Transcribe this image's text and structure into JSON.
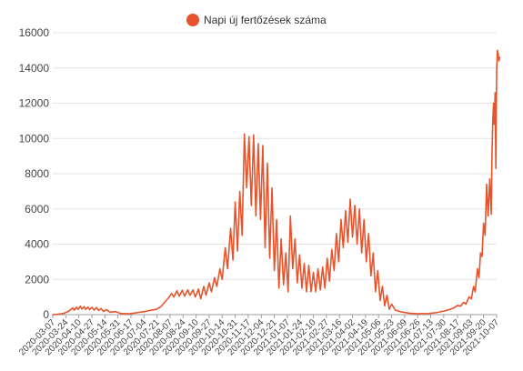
{
  "chart_data": {
    "type": "line",
    "legend": {
      "label": "Napi új fertőzések száma",
      "position": "top-center"
    },
    "series_color": "#e8532b",
    "grid": true,
    "ylim": [
      0,
      16000
    ],
    "y_ticks": [
      0,
      2000,
      4000,
      6000,
      8000,
      10000,
      12000,
      14000,
      16000
    ],
    "x_range": [
      "2020-03-07",
      "2021-10-07"
    ],
    "x_ticks": [
      "2020-03-07",
      "2020-03-24",
      "2020-04-10",
      "2020-04-27",
      "2020-05-14",
      "2020-05-31",
      "2020-06-17",
      "2020-07-04",
      "2020-07-21",
      "2020-08-07",
      "2020-08-24",
      "2020-09-10",
      "2020-09-27",
      "2020-10-14",
      "2020-10-31",
      "2020-11-17",
      "2020-12-04",
      "2020-12-21",
      "2021-01-07",
      "2021-01-24",
      "2021-02-10",
      "2021-02-27",
      "2021-03-16",
      "2021-04-02",
      "2021-04-19",
      "2021-05-06",
      "2021-05-23",
      "2021-06-09",
      "2021-06-26",
      "2021-07-13",
      "2021-07-30",
      "2021-08-17",
      "2021-09-03",
      "2021-09-20",
      "2021-10-07"
    ],
    "series": [
      {
        "name": "Napi új fertőzések száma",
        "points": [
          [
            "2020-03-07",
            0
          ],
          [
            "2020-03-15",
            20
          ],
          [
            "2020-03-22",
            80
          ],
          [
            "2020-03-28",
            200
          ],
          [
            "2020-04-02",
            380
          ],
          [
            "2020-04-04",
            250
          ],
          [
            "2020-04-07",
            420
          ],
          [
            "2020-04-09",
            300
          ],
          [
            "2020-04-12",
            480
          ],
          [
            "2020-04-14",
            320
          ],
          [
            "2020-04-17",
            450
          ],
          [
            "2020-04-19",
            300
          ],
          [
            "2020-04-22",
            430
          ],
          [
            "2020-04-24",
            280
          ],
          [
            "2020-04-27",
            420
          ],
          [
            "2020-04-30",
            260
          ],
          [
            "2020-05-03",
            400
          ],
          [
            "2020-05-06",
            230
          ],
          [
            "2020-05-09",
            350
          ],
          [
            "2020-05-12",
            180
          ],
          [
            "2020-05-16",
            280
          ],
          [
            "2020-05-21",
            130
          ],
          [
            "2020-05-28",
            170
          ],
          [
            "2020-06-04",
            60
          ],
          [
            "2020-06-15",
            50
          ],
          [
            "2020-06-25",
            110
          ],
          [
            "2020-07-04",
            170
          ],
          [
            "2020-07-12",
            240
          ],
          [
            "2020-07-20",
            300
          ],
          [
            "2020-07-26",
            450
          ],
          [
            "2020-07-30",
            650
          ],
          [
            "2020-08-03",
            850
          ],
          [
            "2020-08-06",
            1000
          ],
          [
            "2020-08-09",
            1200
          ],
          [
            "2020-08-12",
            1000
          ],
          [
            "2020-08-16",
            1350
          ],
          [
            "2020-08-19",
            1050
          ],
          [
            "2020-08-23",
            1380
          ],
          [
            "2020-08-26",
            1050
          ],
          [
            "2020-08-30",
            1400
          ],
          [
            "2020-09-02",
            1100
          ],
          [
            "2020-09-06",
            1400
          ],
          [
            "2020-09-09",
            1000
          ],
          [
            "2020-09-13",
            1450
          ],
          [
            "2020-09-16",
            900
          ],
          [
            "2020-09-20",
            1600
          ],
          [
            "2020-09-23",
            1100
          ],
          [
            "2020-09-27",
            1800
          ],
          [
            "2020-09-30",
            1300
          ],
          [
            "2020-10-04",
            2100
          ],
          [
            "2020-10-07",
            1600
          ],
          [
            "2020-10-11",
            2600
          ],
          [
            "2020-10-14",
            2000
          ],
          [
            "2020-10-18",
            3800
          ],
          [
            "2020-10-21",
            2600
          ],
          [
            "2020-10-25",
            4900
          ],
          [
            "2020-10-28",
            3100
          ],
          [
            "2020-10-31",
            6400
          ],
          [
            "2020-11-03",
            3600
          ],
          [
            "2020-11-06",
            7000
          ],
          [
            "2020-11-09",
            4500
          ],
          [
            "2020-11-12",
            10250
          ],
          [
            "2020-11-15",
            7200
          ],
          [
            "2020-11-18",
            10100
          ],
          [
            "2020-11-21",
            6200
          ],
          [
            "2020-11-24",
            10200
          ],
          [
            "2020-11-27",
            5600
          ],
          [
            "2020-11-30",
            9700
          ],
          [
            "2020-12-03",
            5400
          ],
          [
            "2020-12-06",
            9600
          ],
          [
            "2020-12-09",
            3800
          ],
          [
            "2020-12-12",
            8600
          ],
          [
            "2020-12-15",
            3200
          ],
          [
            "2020-12-18",
            7200
          ],
          [
            "2020-12-21",
            2500
          ],
          [
            "2020-12-24",
            5400
          ],
          [
            "2020-12-27",
            1500
          ],
          [
            "2020-12-30",
            4300
          ],
          [
            "2021-01-02",
            1700
          ],
          [
            "2021-01-05",
            3500
          ],
          [
            "2021-01-08",
            1300
          ],
          [
            "2021-01-11",
            5600
          ],
          [
            "2021-01-14",
            2600
          ],
          [
            "2021-01-17",
            4300
          ],
          [
            "2021-01-20",
            1800
          ],
          [
            "2021-01-23",
            3400
          ],
          [
            "2021-01-26",
            1500
          ],
          [
            "2021-01-29",
            2900
          ],
          [
            "2021-02-01",
            1300
          ],
          [
            "2021-02-04",
            2800
          ],
          [
            "2021-02-07",
            1300
          ],
          [
            "2021-02-10",
            2400
          ],
          [
            "2021-02-13",
            1300
          ],
          [
            "2021-02-16",
            2600
          ],
          [
            "2021-02-19",
            1400
          ],
          [
            "2021-02-22",
            2700
          ],
          [
            "2021-02-25",
            1500
          ],
          [
            "2021-02-28",
            3200
          ],
          [
            "2021-03-03",
            1900
          ],
          [
            "2021-03-06",
            3700
          ],
          [
            "2021-03-09",
            2500
          ],
          [
            "2021-03-12",
            4600
          ],
          [
            "2021-03-15",
            3000
          ],
          [
            "2021-03-18",
            5400
          ],
          [
            "2021-03-21",
            3800
          ],
          [
            "2021-03-24",
            5900
          ],
          [
            "2021-03-27",
            4100
          ],
          [
            "2021-03-30",
            6550
          ],
          [
            "2021-04-02",
            4400
          ],
          [
            "2021-04-05",
            6200
          ],
          [
            "2021-04-08",
            4000
          ],
          [
            "2021-04-11",
            6000
          ],
          [
            "2021-04-14",
            3500
          ],
          [
            "2021-04-17",
            5400
          ],
          [
            "2021-04-20",
            3000
          ],
          [
            "2021-04-23",
            4600
          ],
          [
            "2021-04-26",
            2200
          ],
          [
            "2021-04-29",
            3500
          ],
          [
            "2021-05-02",
            1300
          ],
          [
            "2021-05-05",
            2500
          ],
          [
            "2021-05-08",
            800
          ],
          [
            "2021-05-11",
            1600
          ],
          [
            "2021-05-14",
            500
          ],
          [
            "2021-05-17",
            1100
          ],
          [
            "2021-05-20",
            300
          ],
          [
            "2021-05-23",
            600
          ],
          [
            "2021-05-28",
            250
          ],
          [
            "2021-06-05",
            150
          ],
          [
            "2021-06-15",
            80
          ],
          [
            "2021-06-26",
            50
          ],
          [
            "2021-07-10",
            60
          ],
          [
            "2021-07-20",
            110
          ],
          [
            "2021-07-30",
            200
          ],
          [
            "2021-08-06",
            280
          ],
          [
            "2021-08-12",
            380
          ],
          [
            "2021-08-17",
            520
          ],
          [
            "2021-08-21",
            480
          ],
          [
            "2021-08-25",
            700
          ],
          [
            "2021-08-28",
            600
          ],
          [
            "2021-09-01",
            1000
          ],
          [
            "2021-09-04",
            900
          ],
          [
            "2021-09-07",
            1600
          ],
          [
            "2021-09-09",
            1300
          ],
          [
            "2021-09-12",
            2600
          ],
          [
            "2021-09-14",
            2100
          ],
          [
            "2021-09-16",
            3500
          ],
          [
            "2021-09-18",
            3300
          ],
          [
            "2021-09-20",
            5200
          ],
          [
            "2021-09-22",
            4500
          ],
          [
            "2021-09-24",
            7400
          ],
          [
            "2021-09-26",
            5600
          ],
          [
            "2021-09-28",
            7700
          ],
          [
            "2021-09-30",
            5700
          ],
          [
            "2021-10-01",
            9200
          ],
          [
            "2021-10-02",
            11000
          ],
          [
            "2021-10-03",
            12000
          ],
          [
            "2021-10-04",
            10800
          ],
          [
            "2021-10-05",
            12600
          ],
          [
            "2021-10-06",
            8300
          ],
          [
            "2021-10-07",
            13800
          ],
          [
            "2021-10-08",
            15000
          ],
          [
            "2021-10-09",
            14800
          ],
          [
            "2021-10-10",
            14400
          ],
          [
            "2021-10-11",
            14600
          ]
        ]
      }
    ]
  }
}
